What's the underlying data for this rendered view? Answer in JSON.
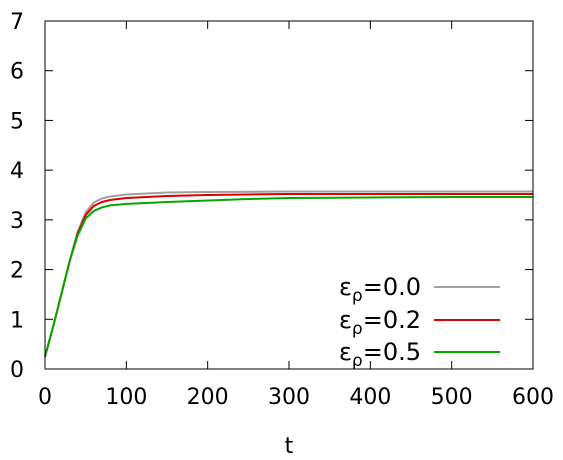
{
  "chart_data": {
    "type": "line",
    "title": "",
    "xlabel": "t",
    "ylabel": "",
    "xlim": [
      0,
      600
    ],
    "ylim": [
      0,
      7
    ],
    "xticks": [
      0,
      100,
      200,
      300,
      400,
      500,
      600
    ],
    "yticks": [
      0,
      1,
      2,
      3,
      4,
      5,
      6,
      7
    ],
    "grid": false,
    "legend": "bottom-right",
    "series": [
      {
        "name": "ε",
        "subscript": "ρ",
        "value_label": "=0.0",
        "color": "#a0a0a0",
        "x": [
          0,
          10,
          20,
          30,
          40,
          50,
          60,
          70,
          80,
          100,
          125,
          150,
          200,
          300,
          400,
          500,
          600
        ],
        "y": [
          0.25,
          0.85,
          1.5,
          2.15,
          2.75,
          3.15,
          3.35,
          3.43,
          3.47,
          3.51,
          3.53,
          3.55,
          3.56,
          3.57,
          3.57,
          3.57,
          3.57
        ]
      },
      {
        "name": "ε",
        "subscript": "ρ",
        "value_label": "=0.2",
        "color": "#dd0000",
        "x": [
          0,
          10,
          20,
          30,
          40,
          50,
          60,
          70,
          80,
          100,
          125,
          150,
          200,
          300,
          400,
          500,
          600
        ],
        "y": [
          0.25,
          0.85,
          1.5,
          2.15,
          2.72,
          3.1,
          3.28,
          3.36,
          3.4,
          3.44,
          3.46,
          3.48,
          3.5,
          3.52,
          3.52,
          3.52,
          3.52
        ]
      },
      {
        "name": "ε",
        "subscript": "ρ",
        "value_label": "=0.5",
        "color": "#00aa00",
        "x": [
          0,
          10,
          20,
          30,
          40,
          50,
          60,
          70,
          80,
          100,
          125,
          150,
          200,
          250,
          300,
          400,
          500,
          600
        ],
        "y": [
          0.25,
          0.85,
          1.5,
          2.15,
          2.68,
          3.03,
          3.18,
          3.25,
          3.29,
          3.32,
          3.34,
          3.36,
          3.39,
          3.42,
          3.44,
          3.45,
          3.46,
          3.46
        ]
      }
    ]
  }
}
